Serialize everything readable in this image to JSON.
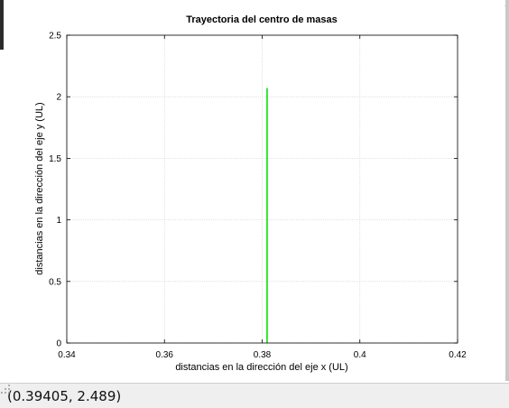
{
  "status": {
    "coordinate_readout": "(0.39405, 2.489)"
  },
  "chart_data": {
    "type": "line",
    "title": "Trayectoria del centro de masas",
    "xlabel": "distancias en la dirección del eje x (UL)",
    "ylabel": "distancias en la dirección del eje y (UL)",
    "xlim": [
      0.34,
      0.42
    ],
    "ylim": [
      0,
      2.5
    ],
    "x_ticks": [
      0.34,
      0.36,
      0.38,
      0.4,
      0.42
    ],
    "x_tick_labels": [
      "0.34",
      "0.36",
      "0.38",
      "0.4",
      "0.42"
    ],
    "y_ticks": [
      0,
      0.5,
      1,
      1.5,
      2,
      2.5
    ],
    "y_tick_labels": [
      "0",
      "0.5",
      "1",
      "1.5",
      "2",
      "2.5"
    ],
    "grid": true,
    "series": [
      {
        "color": "#33e633",
        "x": [
          0.381,
          0.381
        ],
        "y": [
          0.0,
          2.07
        ]
      }
    ]
  }
}
